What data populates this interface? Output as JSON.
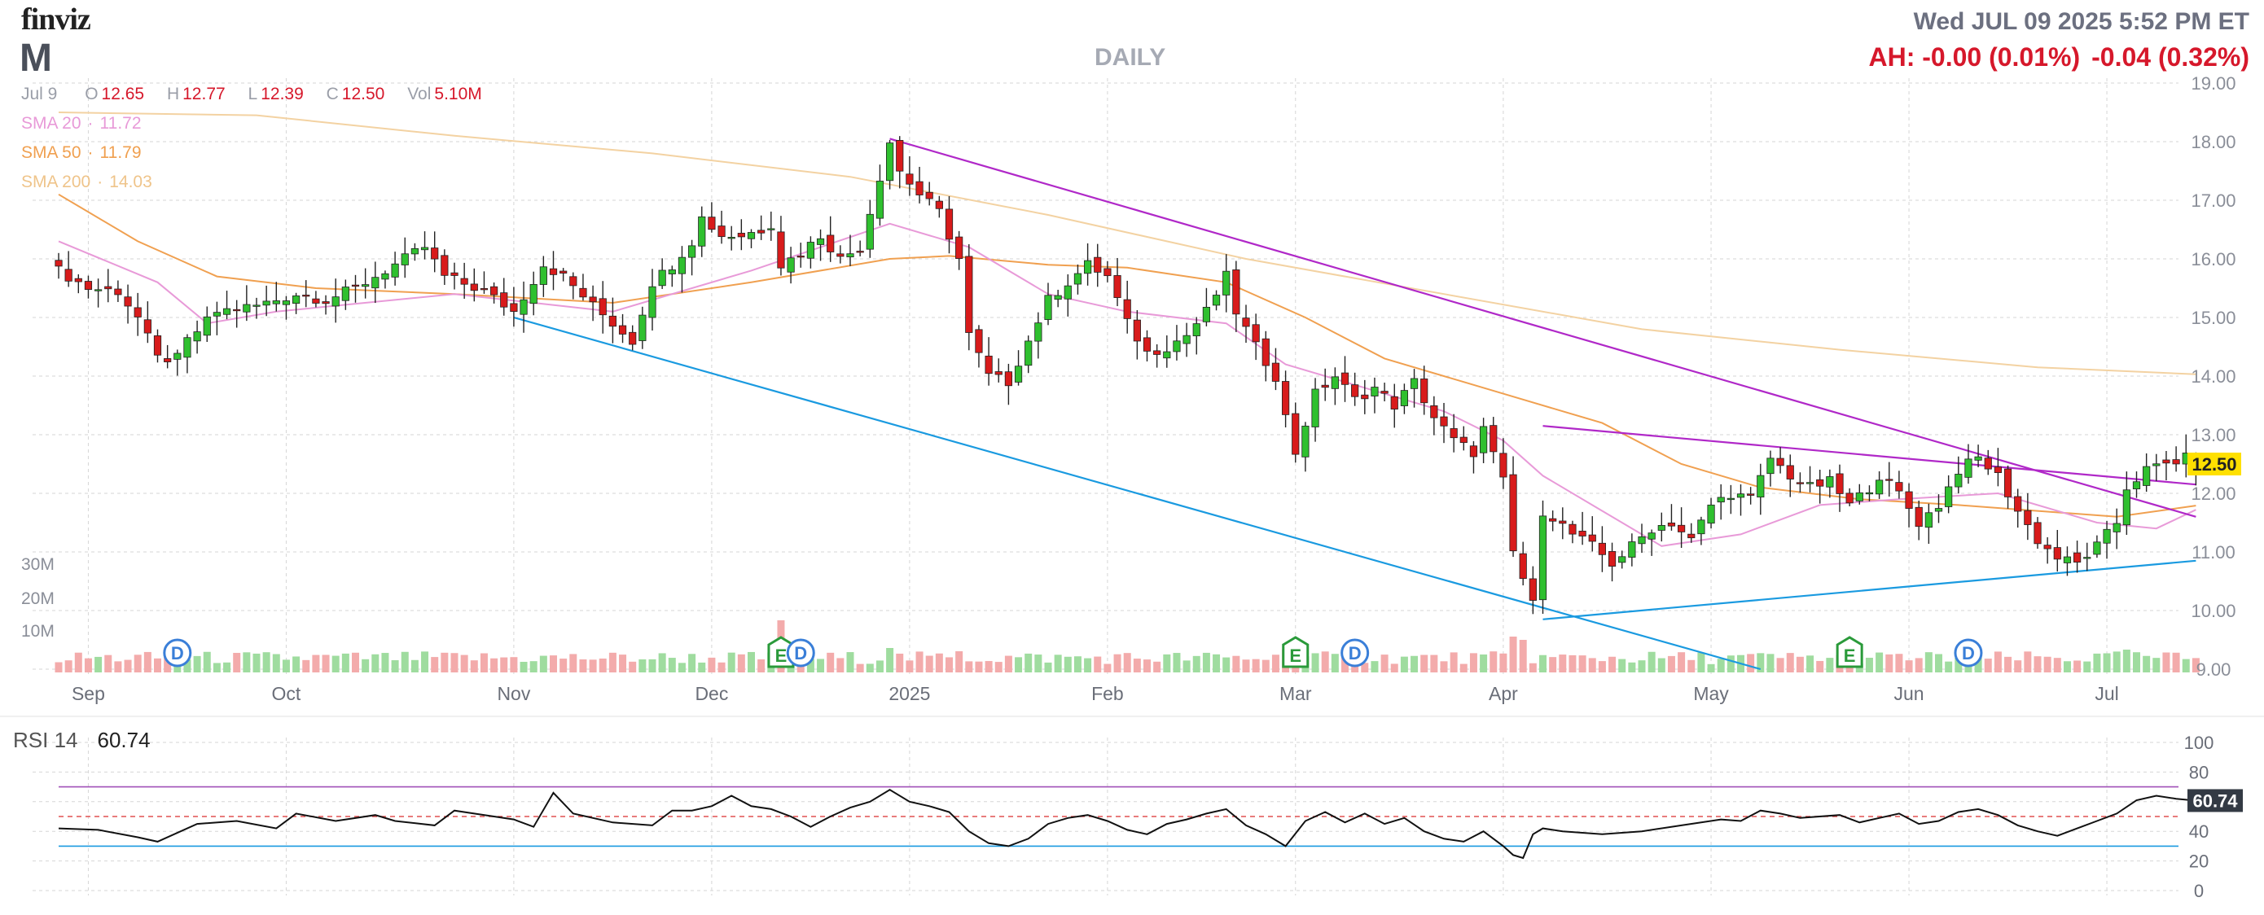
{
  "header": {
    "logo": "finviz",
    "ticker": "M",
    "period": "DAILY",
    "datetime": "Wed JUL 09 2025 5:52 PM ET",
    "after_hours": "AH: -0.00 (0.01%)",
    "day_change": "-0.04 (0.32%)"
  },
  "ohlc": {
    "date": "Jul 9",
    "open_label": "O",
    "open": "12.65",
    "high_label": "H",
    "high": "12.77",
    "low_label": "L",
    "low": "12.39",
    "close_label": "C",
    "close": "12.50",
    "vol_label": "Vol",
    "volume": "5.10M"
  },
  "sma": [
    {
      "label": "SMA 20",
      "value": "11.72",
      "color": "#e89ad8"
    },
    {
      "label": "SMA 50",
      "value": "11.79",
      "color": "#f0a050"
    },
    {
      "label": "SMA 200",
      "value": "14.03",
      "color": "#f3d2a2"
    }
  ],
  "colors": {
    "up": "#2fc02f",
    "down": "#d81b1b",
    "vol_up": "#9fdc9f",
    "vol_down": "#f3abab",
    "trend_upper": "#b028c8",
    "trend_lower": "#1a9ae0",
    "rsi_line": "#111111",
    "price_tag_bg": "#ffe000"
  },
  "chart_data": [
    {
      "type": "candlestick",
      "title": "DAILY",
      "ylim": [
        9.0,
        19.0
      ],
      "y_ticks": [
        "9.00",
        "10.00",
        "11.00",
        "12.00",
        "13.00",
        "14.00",
        "15.00",
        "16.00",
        "17.00",
        "18.00",
        "19.00"
      ],
      "x_labels": [
        {
          "label": "Sep",
          "index": 3
        },
        {
          "label": "Oct",
          "index": 23
        },
        {
          "label": "Nov",
          "index": 46
        },
        {
          "label": "Dec",
          "index": 66
        },
        {
          "label": "2025",
          "index": 86
        },
        {
          "label": "Feb",
          "index": 106
        },
        {
          "label": "Mar",
          "index": 125
        },
        {
          "label": "Apr",
          "index": 146
        },
        {
          "label": "May",
          "index": 167
        },
        {
          "label": "Jun",
          "index": 187
        },
        {
          "label": "Jul",
          "index": 207
        }
      ],
      "last_price_tag": "12.50",
      "volume_axis_labels": [
        "30M",
        "20M",
        "10M"
      ],
      "events": [
        {
          "label": "D",
          "index": 12
        },
        {
          "label": "E",
          "index": 73
        },
        {
          "label": "D",
          "index": 75
        },
        {
          "label": "E",
          "index": 125
        },
        {
          "label": "D",
          "index": 131
        },
        {
          "label": "E",
          "index": 181
        },
        {
          "label": "D",
          "index": 193
        }
      ],
      "close_path": [
        [
          0,
          15.8
        ],
        [
          3,
          15.5
        ],
        [
          6,
          15.45
        ],
        [
          8,
          15.0
        ],
        [
          10,
          14.3
        ],
        [
          12,
          14.3
        ],
        [
          13,
          14.6
        ],
        [
          16,
          15.1
        ],
        [
          20,
          15.2
        ],
        [
          24,
          15.4
        ],
        [
          27,
          15.3
        ],
        [
          30,
          15.5
        ],
        [
          34,
          15.9
        ],
        [
          37,
          16.2
        ],
        [
          39,
          15.7
        ],
        [
          43,
          15.45
        ],
        [
          46,
          15.1
        ],
        [
          49,
          15.9
        ],
        [
          51,
          15.7
        ],
        [
          54,
          15.2
        ],
        [
          58,
          14.6
        ],
        [
          60,
          15.6
        ],
        [
          62,
          15.9
        ],
        [
          64,
          16.3
        ],
        [
          65,
          16.7
        ],
        [
          67,
          16.4
        ],
        [
          69,
          16.4
        ],
        [
          71,
          16.5
        ],
        [
          72,
          16.6
        ],
        [
          73,
          15.9
        ],
        [
          75,
          16.1
        ],
        [
          77,
          16.4
        ],
        [
          79,
          16.0
        ],
        [
          81,
          16.2
        ],
        [
          84,
          18.0
        ],
        [
          85,
          17.5
        ],
        [
          87,
          17.1
        ],
        [
          89,
          16.8
        ],
        [
          91,
          16.0
        ],
        [
          92,
          14.7
        ],
        [
          94,
          14.0
        ],
        [
          96,
          13.9
        ],
        [
          98,
          14.6
        ],
        [
          100,
          15.3
        ],
        [
          102,
          15.6
        ],
        [
          104,
          15.9
        ],
        [
          106,
          15.7
        ],
        [
          108,
          14.9
        ],
        [
          110,
          14.4
        ],
        [
          112,
          14.5
        ],
        [
          114,
          14.7
        ],
        [
          116,
          15.1
        ],
        [
          118,
          15.7
        ],
        [
          119,
          15.1
        ],
        [
          121,
          14.5
        ],
        [
          123,
          14.0
        ],
        [
          124,
          13.3
        ],
        [
          125,
          12.7
        ],
        [
          127,
          13.7
        ],
        [
          129,
          14.0
        ],
        [
          131,
          13.6
        ],
        [
          133,
          13.8
        ],
        [
          135,
          13.5
        ],
        [
          137,
          13.9
        ],
        [
          139,
          13.3
        ],
        [
          141,
          12.9
        ],
        [
          143,
          12.7
        ],
        [
          144,
          13.1
        ],
        [
          146,
          12.2
        ],
        [
          147,
          11.0
        ],
        [
          149,
          10.1
        ],
        [
          150,
          11.7
        ],
        [
          151,
          11.6
        ],
        [
          153,
          11.3
        ],
        [
          155,
          11.1
        ],
        [
          157,
          10.8
        ],
        [
          159,
          11.1
        ],
        [
          161,
          11.4
        ],
        [
          163,
          11.5
        ],
        [
          165,
          11.2
        ],
        [
          167,
          11.8
        ],
        [
          169,
          12.0
        ],
        [
          171,
          11.9
        ],
        [
          173,
          12.6
        ],
        [
          175,
          12.3
        ],
        [
          177,
          12.1
        ],
        [
          179,
          12.2
        ],
        [
          181,
          11.8
        ],
        [
          183,
          12.1
        ],
        [
          184,
          12.3
        ],
        [
          186,
          12.0
        ],
        [
          188,
          11.5
        ],
        [
          190,
          11.8
        ],
        [
          192,
          12.4
        ],
        [
          194,
          12.6
        ],
        [
          196,
          12.3
        ],
        [
          198,
          11.7
        ],
        [
          200,
          11.2
        ],
        [
          202,
          10.9
        ],
        [
          204,
          10.8
        ],
        [
          206,
          11.1
        ],
        [
          208,
          11.5
        ],
        [
          209,
          12.1
        ],
        [
          211,
          12.4
        ],
        [
          213,
          12.5
        ],
        [
          215,
          12.6
        ],
        [
          216,
          12.5
        ]
      ],
      "sma20_path": [
        [
          0,
          16.3
        ],
        [
          10,
          15.6
        ],
        [
          15,
          14.9
        ],
        [
          22,
          15.1
        ],
        [
          40,
          15.4
        ],
        [
          56,
          15.1
        ],
        [
          70,
          15.8
        ],
        [
          84,
          16.6
        ],
        [
          92,
          16.2
        ],
        [
          100,
          15.4
        ],
        [
          108,
          15.1
        ],
        [
          118,
          14.9
        ],
        [
          124,
          14.2
        ],
        [
          132,
          13.8
        ],
        [
          140,
          13.4
        ],
        [
          146,
          12.9
        ],
        [
          150,
          12.3
        ],
        [
          156,
          11.7
        ],
        [
          162,
          11.1
        ],
        [
          170,
          11.3
        ],
        [
          178,
          11.8
        ],
        [
          186,
          11.9
        ],
        [
          196,
          12.0
        ],
        [
          206,
          11.5
        ],
        [
          212,
          11.4
        ],
        [
          216,
          11.72
        ]
      ],
      "sma50_path": [
        [
          0,
          17.1
        ],
        [
          8,
          16.3
        ],
        [
          16,
          15.7
        ],
        [
          26,
          15.5
        ],
        [
          40,
          15.4
        ],
        [
          56,
          15.25
        ],
        [
          70,
          15.6
        ],
        [
          84,
          16.0
        ],
        [
          90,
          16.05
        ],
        [
          100,
          15.9
        ],
        [
          108,
          15.85
        ],
        [
          118,
          15.6
        ],
        [
          126,
          15.0
        ],
        [
          134,
          14.3
        ],
        [
          142,
          13.9
        ],
        [
          148,
          13.6
        ],
        [
          156,
          13.2
        ],
        [
          164,
          12.5
        ],
        [
          172,
          12.1
        ],
        [
          182,
          11.9
        ],
        [
          192,
          11.8
        ],
        [
          200,
          11.7
        ],
        [
          208,
          11.6
        ],
        [
          216,
          11.79
        ]
      ],
      "sma200_path": [
        [
          0,
          18.5
        ],
        [
          20,
          18.45
        ],
        [
          40,
          18.1
        ],
        [
          60,
          17.8
        ],
        [
          80,
          17.4
        ],
        [
          100,
          16.75
        ],
        [
          120,
          16.0
        ],
        [
          140,
          15.4
        ],
        [
          160,
          14.8
        ],
        [
          180,
          14.45
        ],
        [
          200,
          14.15
        ],
        [
          216,
          14.03
        ]
      ],
      "trendlines": [
        {
          "points": [
            [
              84,
              18.05
            ],
            [
              216,
              11.6
            ]
          ],
          "color": "purple"
        },
        {
          "points": [
            [
              150,
              13.15
            ],
            [
              216,
              12.15
            ]
          ],
          "color": "purple"
        },
        {
          "points": [
            [
              46,
              15.0
            ],
            [
              172,
              9.0
            ]
          ],
          "color": "blue"
        },
        {
          "points": [
            [
              150,
              9.85
            ],
            [
              216,
              10.85
            ]
          ],
          "color": "blue"
        }
      ]
    },
    {
      "type": "line",
      "title": "RSI 14",
      "current": "60.74",
      "ylim": [
        0,
        100
      ],
      "y_ticks": [
        "100",
        "80",
        "60",
        "40",
        "20",
        "0"
      ],
      "overbought": 70,
      "oversold": 30,
      "midline": 50,
      "rsi_path": [
        [
          0,
          42
        ],
        [
          4,
          41
        ],
        [
          8,
          36
        ],
        [
          10,
          33
        ],
        [
          14,
          45
        ],
        [
          18,
          47
        ],
        [
          22,
          42
        ],
        [
          24,
          52
        ],
        [
          28,
          47
        ],
        [
          32,
          51
        ],
        [
          34,
          47
        ],
        [
          38,
          44
        ],
        [
          40,
          54
        ],
        [
          42,
          52
        ],
        [
          46,
          48
        ],
        [
          48,
          43
        ],
        [
          50,
          66
        ],
        [
          52,
          52
        ],
        [
          56,
          46
        ],
        [
          60,
          44
        ],
        [
          62,
          54
        ],
        [
          64,
          54
        ],
        [
          66,
          57
        ],
        [
          68,
          64
        ],
        [
          70,
          57
        ],
        [
          72,
          55
        ],
        [
          74,
          50
        ],
        [
          76,
          43
        ],
        [
          78,
          50
        ],
        [
          80,
          56
        ],
        [
          82,
          60
        ],
        [
          84,
          68
        ],
        [
          86,
          60
        ],
        [
          88,
          57
        ],
        [
          90,
          53
        ],
        [
          92,
          40
        ],
        [
          94,
          32
        ],
        [
          96,
          30
        ],
        [
          98,
          35
        ],
        [
          100,
          45
        ],
        [
          102,
          49
        ],
        [
          104,
          51
        ],
        [
          106,
          47
        ],
        [
          108,
          41
        ],
        [
          110,
          38
        ],
        [
          112,
          45
        ],
        [
          114,
          48
        ],
        [
          116,
          52
        ],
        [
          118,
          55
        ],
        [
          120,
          44
        ],
        [
          122,
          38
        ],
        [
          124,
          30
        ],
        [
          126,
          47
        ],
        [
          128,
          53
        ],
        [
          130,
          46
        ],
        [
          132,
          52
        ],
        [
          134,
          45
        ],
        [
          136,
          49
        ],
        [
          138,
          40
        ],
        [
          140,
          35
        ],
        [
          142,
          33
        ],
        [
          144,
          40
        ],
        [
          146,
          30
        ],
        [
          147,
          24
        ],
        [
          148,
          22
        ],
        [
          149,
          38
        ],
        [
          150,
          42
        ],
        [
          152,
          40
        ],
        [
          156,
          38
        ],
        [
          160,
          40
        ],
        [
          164,
          44
        ],
        [
          168,
          48
        ],
        [
          170,
          47
        ],
        [
          172,
          54
        ],
        [
          174,
          52
        ],
        [
          176,
          49
        ],
        [
          180,
          51
        ],
        [
          182,
          46
        ],
        [
          184,
          49
        ],
        [
          186,
          52
        ],
        [
          188,
          45
        ],
        [
          190,
          47
        ],
        [
          192,
          53
        ],
        [
          194,
          55
        ],
        [
          196,
          51
        ],
        [
          198,
          44
        ],
        [
          200,
          40
        ],
        [
          202,
          37
        ],
        [
          204,
          42
        ],
        [
          206,
          47
        ],
        [
          208,
          52
        ],
        [
          210,
          61
        ],
        [
          212,
          64
        ],
        [
          214,
          62
        ],
        [
          216,
          60.74
        ]
      ]
    }
  ]
}
